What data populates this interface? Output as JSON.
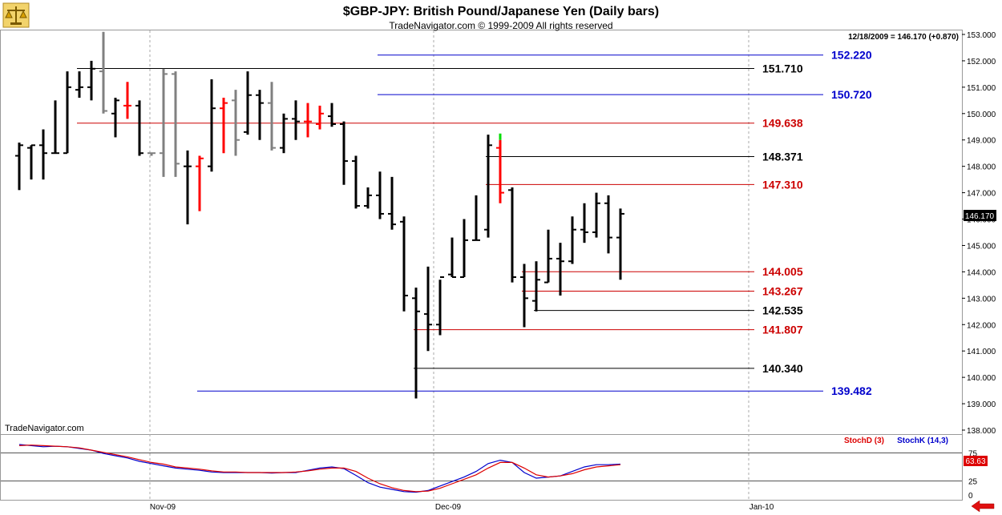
{
  "header": {
    "title": "$GBP-JPY:  British Pound/Japanese Yen  (Daily bars)",
    "subtitle": "TradeNavigator.com © 1999-2009 All rights reserved",
    "last_quote": "12/18/2009 = 146.170 (+0.870)",
    "watermark": "TradeNavigator.com",
    "logo_icon": "scales-logo-icon",
    "nav_icon": "back-arrow-icon"
  },
  "colors": {
    "bar_up_black": "#000000",
    "bar_gray": "#808080",
    "bar_red": "#ff0000",
    "level_black": "#000000",
    "level_red": "#cc0000",
    "level_blue": "#0000cc",
    "stoch_d": "#dd0000",
    "stoch_k": "#0000cc",
    "highlight": "#00dd00"
  },
  "chart_data": {
    "type": "ohlc",
    "y_axis": {
      "min": 138.0,
      "max": 153.0,
      "ticks": [
        "138.000",
        "139.000",
        "140.000",
        "141.000",
        "142.000",
        "143.000",
        "144.000",
        "145.000",
        "146.000",
        "147.000",
        "148.000",
        "149.000",
        "150.000",
        "151.000",
        "152.000",
        "153.000"
      ],
      "current_label": "146.170"
    },
    "x_axis": {
      "labels": [
        "Nov-09",
        "Dec-09",
        "Jan-10"
      ]
    },
    "bars": [
      {
        "h": 148.9,
        "l": 147.1,
        "o": 148.4,
        "c": 148.8,
        "col": "k"
      },
      {
        "h": 148.8,
        "l": 147.5,
        "o": 148.7,
        "c": 148.8,
        "col": "k"
      },
      {
        "h": 149.4,
        "l": 147.5,
        "o": 148.8,
        "c": 148.5,
        "col": "k"
      },
      {
        "h": 150.5,
        "l": 148.5,
        "o": 148.5,
        "c": 148.5,
        "col": "k"
      },
      {
        "h": 151.6,
        "l": 148.5,
        "o": 148.5,
        "c": 151.0,
        "col": "k"
      },
      {
        "h": 151.6,
        "l": 150.6,
        "o": 150.9,
        "c": 151.0,
        "col": "k"
      },
      {
        "h": 152.0,
        "l": 150.5,
        "o": 151.0,
        "c": 151.7,
        "col": "k"
      },
      {
        "h": 153.1,
        "l": 150.0,
        "o": 151.6,
        "c": 150.1,
        "col": "g"
      },
      {
        "h": 150.6,
        "l": 149.1,
        "o": 150.0,
        "c": 150.5,
        "col": "k"
      },
      {
        "h": 151.2,
        "l": 149.8,
        "o": 150.3,
        "c": 150.3,
        "col": "r"
      },
      {
        "h": 150.5,
        "l": 148.4,
        "o": 150.3,
        "c": 148.5,
        "col": "k"
      },
      {
        "h": 148.5,
        "l": 148.4,
        "o": 148.5,
        "c": 148.5,
        "col": "g"
      },
      {
        "h": 151.7,
        "l": 147.6,
        "o": 148.5,
        "c": 151.5,
        "col": "g"
      },
      {
        "h": 151.6,
        "l": 147.6,
        "o": 151.5,
        "c": 148.1,
        "col": "g"
      },
      {
        "h": 148.6,
        "l": 145.8,
        "o": 148.0,
        "c": 148.0,
        "col": "k"
      },
      {
        "h": 148.4,
        "l": 146.3,
        "o": 148.0,
        "c": 148.3,
        "col": "r"
      },
      {
        "h": 151.3,
        "l": 147.8,
        "o": 148.0,
        "c": 150.2,
        "col": "k"
      },
      {
        "h": 150.6,
        "l": 148.5,
        "o": 150.2,
        "c": 150.4,
        "col": "r"
      },
      {
        "h": 150.9,
        "l": 148.4,
        "o": 150.5,
        "c": 149.0,
        "col": "g"
      },
      {
        "h": 151.6,
        "l": 149.2,
        "o": 149.3,
        "c": 150.7,
        "col": "k"
      },
      {
        "h": 150.9,
        "l": 149.0,
        "o": 150.7,
        "c": 150.4,
        "col": "k"
      },
      {
        "h": 151.2,
        "l": 148.6,
        "o": 150.4,
        "c": 148.7,
        "col": "g"
      },
      {
        "h": 150.0,
        "l": 148.5,
        "o": 148.7,
        "c": 149.8,
        "col": "k"
      },
      {
        "h": 150.5,
        "l": 149.0,
        "o": 149.8,
        "c": 149.7,
        "col": "k"
      },
      {
        "h": 150.4,
        "l": 149.1,
        "o": 149.7,
        "c": 149.7,
        "col": "r"
      },
      {
        "h": 150.3,
        "l": 149.4,
        "o": 149.6,
        "c": 150.0,
        "col": "r"
      },
      {
        "h": 150.4,
        "l": 149.5,
        "o": 149.9,
        "c": 149.6,
        "col": "k"
      },
      {
        "h": 149.7,
        "l": 147.3,
        "o": 149.6,
        "c": 148.2,
        "col": "k"
      },
      {
        "h": 148.4,
        "l": 146.4,
        "o": 148.2,
        "c": 146.5,
        "col": "k"
      },
      {
        "h": 147.2,
        "l": 146.4,
        "o": 146.5,
        "c": 146.9,
        "col": "k"
      },
      {
        "h": 147.8,
        "l": 146.0,
        "o": 146.9,
        "c": 146.2,
        "col": "k"
      },
      {
        "h": 147.6,
        "l": 145.6,
        "o": 146.2,
        "c": 145.8,
        "col": "k"
      },
      {
        "h": 146.1,
        "l": 142.5,
        "o": 145.9,
        "c": 143.1,
        "col": "k"
      },
      {
        "h": 143.4,
        "l": 139.2,
        "o": 143.0,
        "c": 142.5,
        "col": "k"
      },
      {
        "h": 144.2,
        "l": 141.0,
        "o": 142.4,
        "c": 142.0,
        "col": "k"
      },
      {
        "h": 143.7,
        "l": 141.6,
        "o": 142.0,
        "c": 143.8,
        "col": "k"
      },
      {
        "h": 145.3,
        "l": 143.8,
        "o": 143.9,
        "c": 143.8,
        "col": "k"
      },
      {
        "h": 146.0,
        "l": 143.8,
        "o": 143.8,
        "c": 145.2,
        "col": "k"
      },
      {
        "h": 146.9,
        "l": 145.2,
        "o": 145.2,
        "c": 145.2,
        "col": "k"
      },
      {
        "h": 149.2,
        "l": 145.3,
        "o": 145.6,
        "c": 148.8,
        "col": "k"
      },
      {
        "h": 149.0,
        "l": 146.6,
        "o": 148.7,
        "c": 147.0,
        "col": "r"
      },
      {
        "h": 147.2,
        "l": 143.6,
        "o": 147.1,
        "c": 143.8,
        "col": "k"
      },
      {
        "h": 144.3,
        "l": 141.9,
        "o": 143.8,
        "c": 143.0,
        "col": "k"
      },
      {
        "h": 144.4,
        "l": 142.5,
        "o": 142.9,
        "c": 143.7,
        "col": "k"
      },
      {
        "h": 145.6,
        "l": 143.6,
        "o": 143.6,
        "c": 144.5,
        "col": "k"
      },
      {
        "h": 145.1,
        "l": 143.1,
        "o": 144.5,
        "c": 144.4,
        "col": "k"
      },
      {
        "h": 146.1,
        "l": 144.3,
        "o": 144.4,
        "c": 145.6,
        "col": "k"
      },
      {
        "h": 146.6,
        "l": 145.1,
        "o": 145.6,
        "c": 145.5,
        "col": "k"
      },
      {
        "h": 147.0,
        "l": 145.3,
        "o": 145.5,
        "c": 146.6,
        "col": "k"
      },
      {
        "h": 146.9,
        "l": 144.7,
        "o": 146.6,
        "c": 145.3,
        "col": "k"
      },
      {
        "h": 146.4,
        "l": 143.7,
        "o": 145.3,
        "c": 146.2,
        "col": "k"
      }
    ],
    "levels": [
      {
        "value": 152.22,
        "label": "152.220",
        "color": "blue",
        "from_bar": 30
      },
      {
        "value": 151.71,
        "label": "151.710",
        "color": "black",
        "from_bar": 5
      },
      {
        "value": 150.72,
        "label": "150.720",
        "color": "blue",
        "from_bar": 30
      },
      {
        "value": 149.638,
        "label": "149.638",
        "color": "red",
        "from_bar": 5
      },
      {
        "value": 148.371,
        "label": "148.371",
        "color": "black",
        "from_bar": 39
      },
      {
        "value": 147.31,
        "label": "147.310",
        "color": "red",
        "from_bar": 39
      },
      {
        "value": 144.005,
        "label": "144.005",
        "color": "red",
        "from_bar": 42
      },
      {
        "value": 143.267,
        "label": "143.267",
        "color": "red",
        "from_bar": 42
      },
      {
        "value": 142.535,
        "label": "142.535",
        "color": "black",
        "from_bar": 43
      },
      {
        "value": 141.807,
        "label": "141.807",
        "color": "red",
        "from_bar": 33
      },
      {
        "value": 140.34,
        "label": "140.340",
        "color": "black",
        "from_bar": 33
      },
      {
        "value": 139.482,
        "label": "139.482",
        "color": "blue",
        "from_bar": 15
      }
    ],
    "stochastic": {
      "legend_d": "StochD (3)",
      "legend_k": "StochK (14,3)",
      "axis_labels": [
        "75",
        "25",
        "0"
      ],
      "current_label": "63.63",
      "levels": [
        75,
        25
      ],
      "k": [
        90,
        88,
        86,
        87,
        86,
        83,
        80,
        74,
        70,
        66,
        60,
        56,
        52,
        48,
        46,
        44,
        41,
        40,
        40,
        40,
        40,
        39,
        40,
        40,
        44,
        48,
        50,
        47,
        35,
        22,
        14,
        10,
        6,
        5,
        8,
        16,
        24,
        32,
        42,
        56,
        62,
        58,
        40,
        30,
        32,
        34,
        42,
        50,
        54,
        54,
        55
      ],
      "d": [
        88,
        89,
        88,
        87,
        86,
        84,
        80,
        76,
        72,
        68,
        63,
        58,
        55,
        50,
        48,
        46,
        43,
        41,
        41,
        40,
        40,
        40,
        40,
        41,
        43,
        46,
        48,
        48,
        42,
        30,
        20,
        13,
        8,
        6,
        7,
        12,
        20,
        28,
        36,
        48,
        58,
        58,
        48,
        36,
        32,
        34,
        38,
        45,
        50,
        52,
        54
      ]
    }
  }
}
